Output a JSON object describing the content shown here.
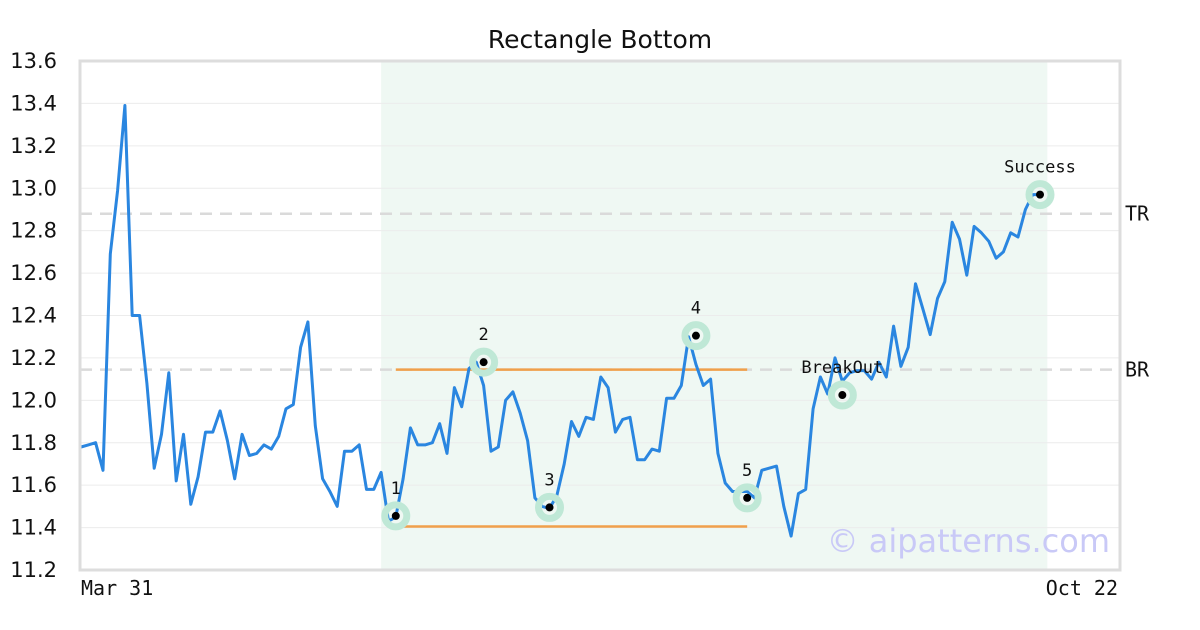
{
  "chart_data": {
    "type": "line",
    "title": "Rectangle Bottom",
    "xlabel": "",
    "ylabel": "",
    "x_tick_labels": [
      "Mar 31",
      "Oct 22"
    ],
    "ylim": [
      11.2,
      13.6
    ],
    "yticks": [
      "11.2",
      "11.4",
      "11.6",
      "11.8",
      "12.0",
      "12.2",
      "12.4",
      "12.6",
      "12.8",
      "13.0",
      "13.2",
      "13.4",
      "13.6"
    ],
    "grid": true,
    "legend": "none",
    "series": [
      {
        "color": "#2a86e0",
        "values": [
          11.78,
          11.79,
          11.8,
          11.67,
          12.69,
          12.99,
          13.39,
          12.4,
          12.4,
          12.08,
          11.68,
          11.84,
          12.13,
          11.62,
          11.84,
          11.51,
          11.64,
          11.85,
          11.85,
          11.95,
          11.81,
          11.63,
          11.84,
          11.74,
          11.75,
          11.79,
          11.77,
          11.83,
          11.96,
          11.98,
          12.25,
          12.37,
          11.88,
          11.63,
          11.57,
          11.5,
          11.76,
          11.76,
          11.79,
          11.58,
          11.58,
          11.66,
          11.43,
          11.45,
          11.63,
          11.87,
          11.79,
          11.79,
          11.8,
          11.89,
          11.75,
          12.06,
          11.97,
          12.15,
          12.18,
          12.07,
          11.76,
          11.78,
          12.0,
          12.04,
          11.94,
          11.81,
          11.54,
          11.5,
          11.49,
          11.55,
          11.7,
          11.9,
          11.83,
          11.92,
          11.91,
          12.11,
          12.06,
          11.85,
          11.91,
          11.92,
          11.72,
          11.72,
          11.77,
          11.76,
          12.01,
          12.01,
          12.07,
          12.3,
          12.17,
          12.07,
          12.1,
          11.75,
          11.61,
          11.57,
          11.57,
          11.57,
          11.54,
          11.67,
          11.68,
          11.69,
          11.5,
          11.36,
          11.56,
          11.58,
          11.96,
          12.11,
          12.03,
          12.2,
          12.09,
          12.13,
          12.14,
          12.14,
          12.1,
          12.18,
          12.11,
          12.35,
          12.16,
          12.25,
          12.55,
          12.43,
          12.31,
          12.48,
          12.56,
          12.84,
          12.76,
          12.59,
          12.82,
          12.79,
          12.75,
          12.67,
          12.7,
          12.79,
          12.77,
          12.9,
          12.97,
          12.97
        ]
      }
    ],
    "highlight_range": {
      "start_index": 41,
      "end_index": 132,
      "color": "#eff8f3"
    },
    "reference_lines": [
      {
        "label": "TR",
        "value": 12.88
      },
      {
        "label": "BR",
        "value": 12.145
      }
    ],
    "rectangle_lines": [
      {
        "value": 12.145,
        "start_index": 43,
        "end_index": 91,
        "color": "#f0a04b"
      },
      {
        "value": 11.405,
        "start_index": 43,
        "end_index": 91,
        "color": "#f0a04b"
      }
    ],
    "annotations": [
      {
        "label": "1",
        "index": 43,
        "value": 11.455
      },
      {
        "label": "2",
        "index": 55,
        "value": 12.18
      },
      {
        "label": "3",
        "index": 64,
        "value": 11.495
      },
      {
        "label": "4",
        "index": 84,
        "value": 12.305
      },
      {
        "label": "5",
        "index": 91,
        "value": 11.54
      },
      {
        "label": "BreakOut",
        "index": 104,
        "value": 12.025
      },
      {
        "label": "Success",
        "index": 131,
        "value": 12.97
      }
    ],
    "watermark": "© aipatterns.com"
  }
}
